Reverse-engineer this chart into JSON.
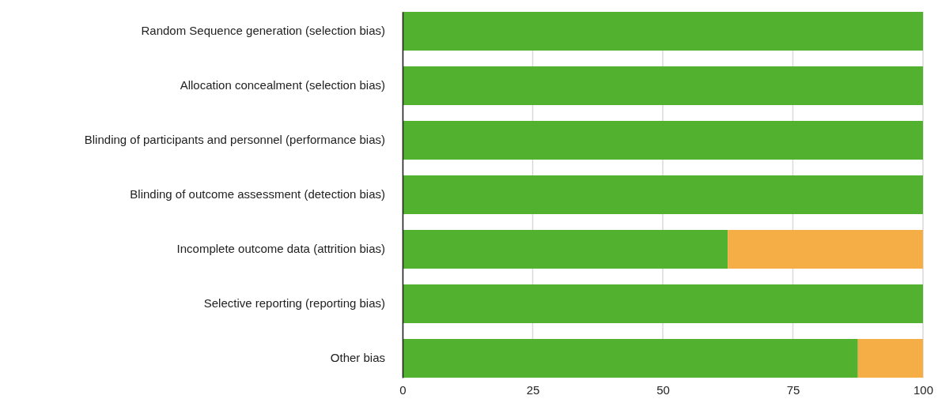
{
  "chart_data": {
    "type": "bar",
    "orientation": "horizontal",
    "stacked": true,
    "categories": [
      "Random Sequence generation (selection bias)",
      "Allocation concealment (selection bias)",
      "Blinding of participants and personnel (performance bias)",
      "Blinding of outcome assessment (detection bias)",
      "Incomplete outcome data (attrition bias)",
      "Selective reporting (reporting bias)",
      "Other bias"
    ],
    "series": [
      {
        "color": "#52b12f",
        "values": [
          100,
          100,
          100,
          100,
          62.5,
          100,
          87.5
        ]
      },
      {
        "color": "#f5ae45",
        "values": [
          0,
          0,
          0,
          0,
          37.5,
          0,
          12.5
        ]
      }
    ],
    "xlim": [
      0,
      100
    ],
    "xticks": [
      0,
      25,
      50,
      75,
      100
    ],
    "grid": "x"
  }
}
